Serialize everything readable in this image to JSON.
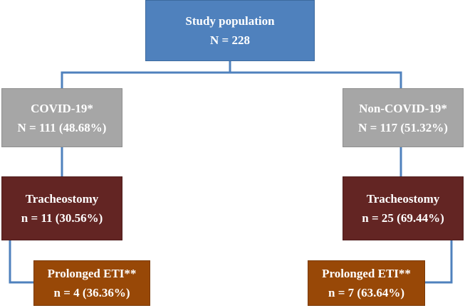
{
  "root": {
    "title": "Study population",
    "count": "N = 228"
  },
  "left_branch": {
    "group": {
      "title": "COVID-19*",
      "count": "N = 111 (48.68%)"
    },
    "tracheostomy": {
      "title": "Tracheostomy",
      "count": "n = 11 (30.56%)"
    },
    "prolonged": {
      "title": "Prolonged ETI**",
      "count": "n = 4 (36.36%)"
    }
  },
  "right_branch": {
    "group": {
      "title": "Non-COVID-19*",
      "count": "N = 117 (51.32%)"
    },
    "tracheostomy": {
      "title": "Tracheostomy",
      "count": "n = 25 (69.44%)"
    },
    "prolonged": {
      "title": "Prolonged ETI**",
      "count": "n = 7 (63.64%)"
    }
  },
  "colors": {
    "root": "#4f81bd",
    "group": "#a6a6a6",
    "tracheostomy": "#632523",
    "prolonged": "#984807",
    "connector": "#4f81bd"
  }
}
